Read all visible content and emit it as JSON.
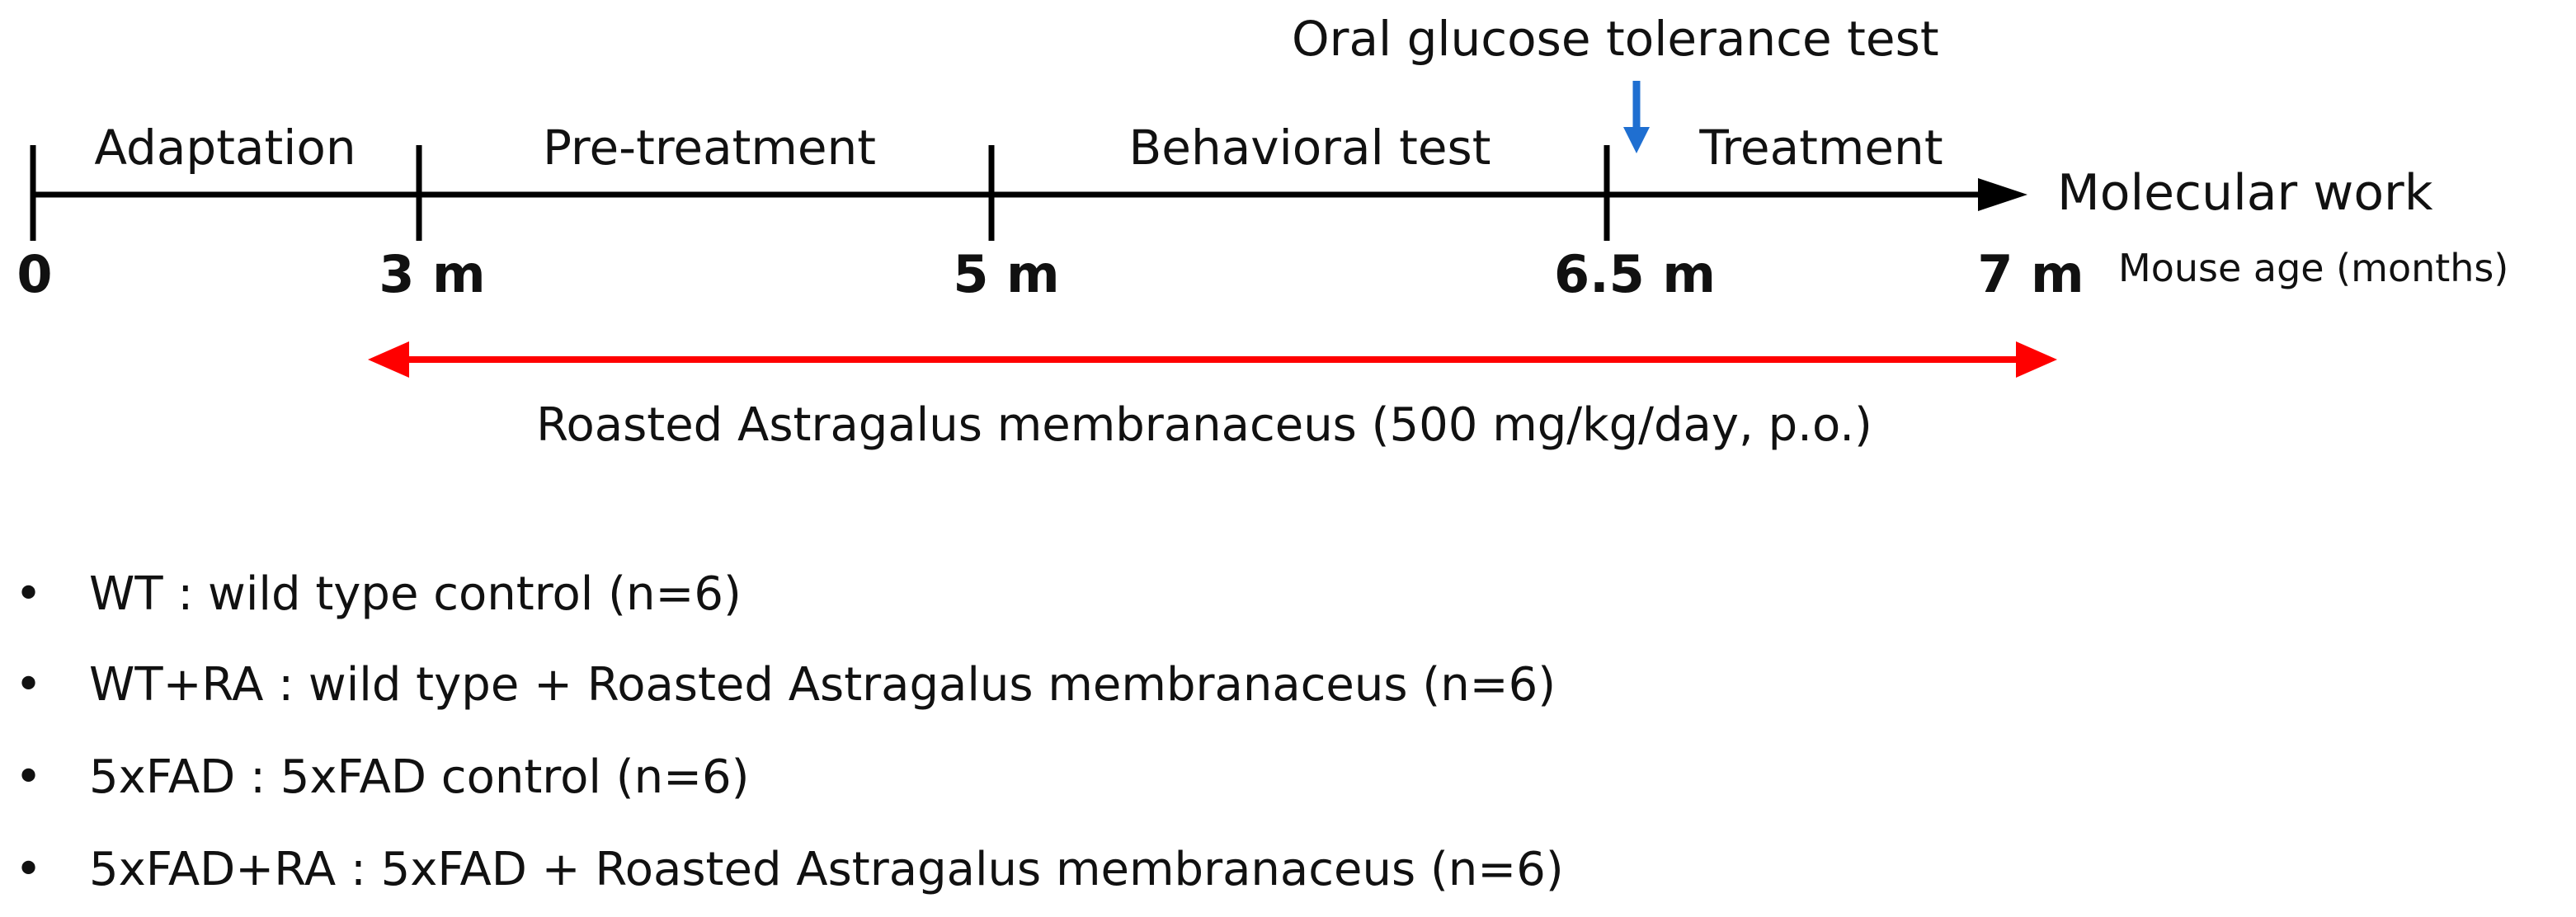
{
  "colors": {
    "timeline": "#000000",
    "treatment_arrow": "#ff0000",
    "ogtt_arrow": "#1f6fd1"
  },
  "top_annotation": "Oral glucose tolerance test",
  "phases": [
    "Adaptation",
    "Pre-treatment",
    "Behavioral test",
    "Treatment"
  ],
  "end_label": "Molecular work",
  "ticks": [
    "0",
    "3 m",
    "5 m",
    "6.5 m",
    "7 m"
  ],
  "axis_label": "Mouse age (months)",
  "treatment_bar": "Roasted Astragalus membranaceus (500 mg/kg/day, p.o.)",
  "legend": {
    "bullet": "•",
    "items": [
      "WT : wild type control (n=6)",
      "WT+RA : wild type + Roasted Astragalus membranaceus (n=6)",
      "5xFAD : 5xFAD control (n=6)",
      "5xFAD+RA : 5xFAD + Roasted Astragalus membranaceus (n=6)"
    ]
  }
}
